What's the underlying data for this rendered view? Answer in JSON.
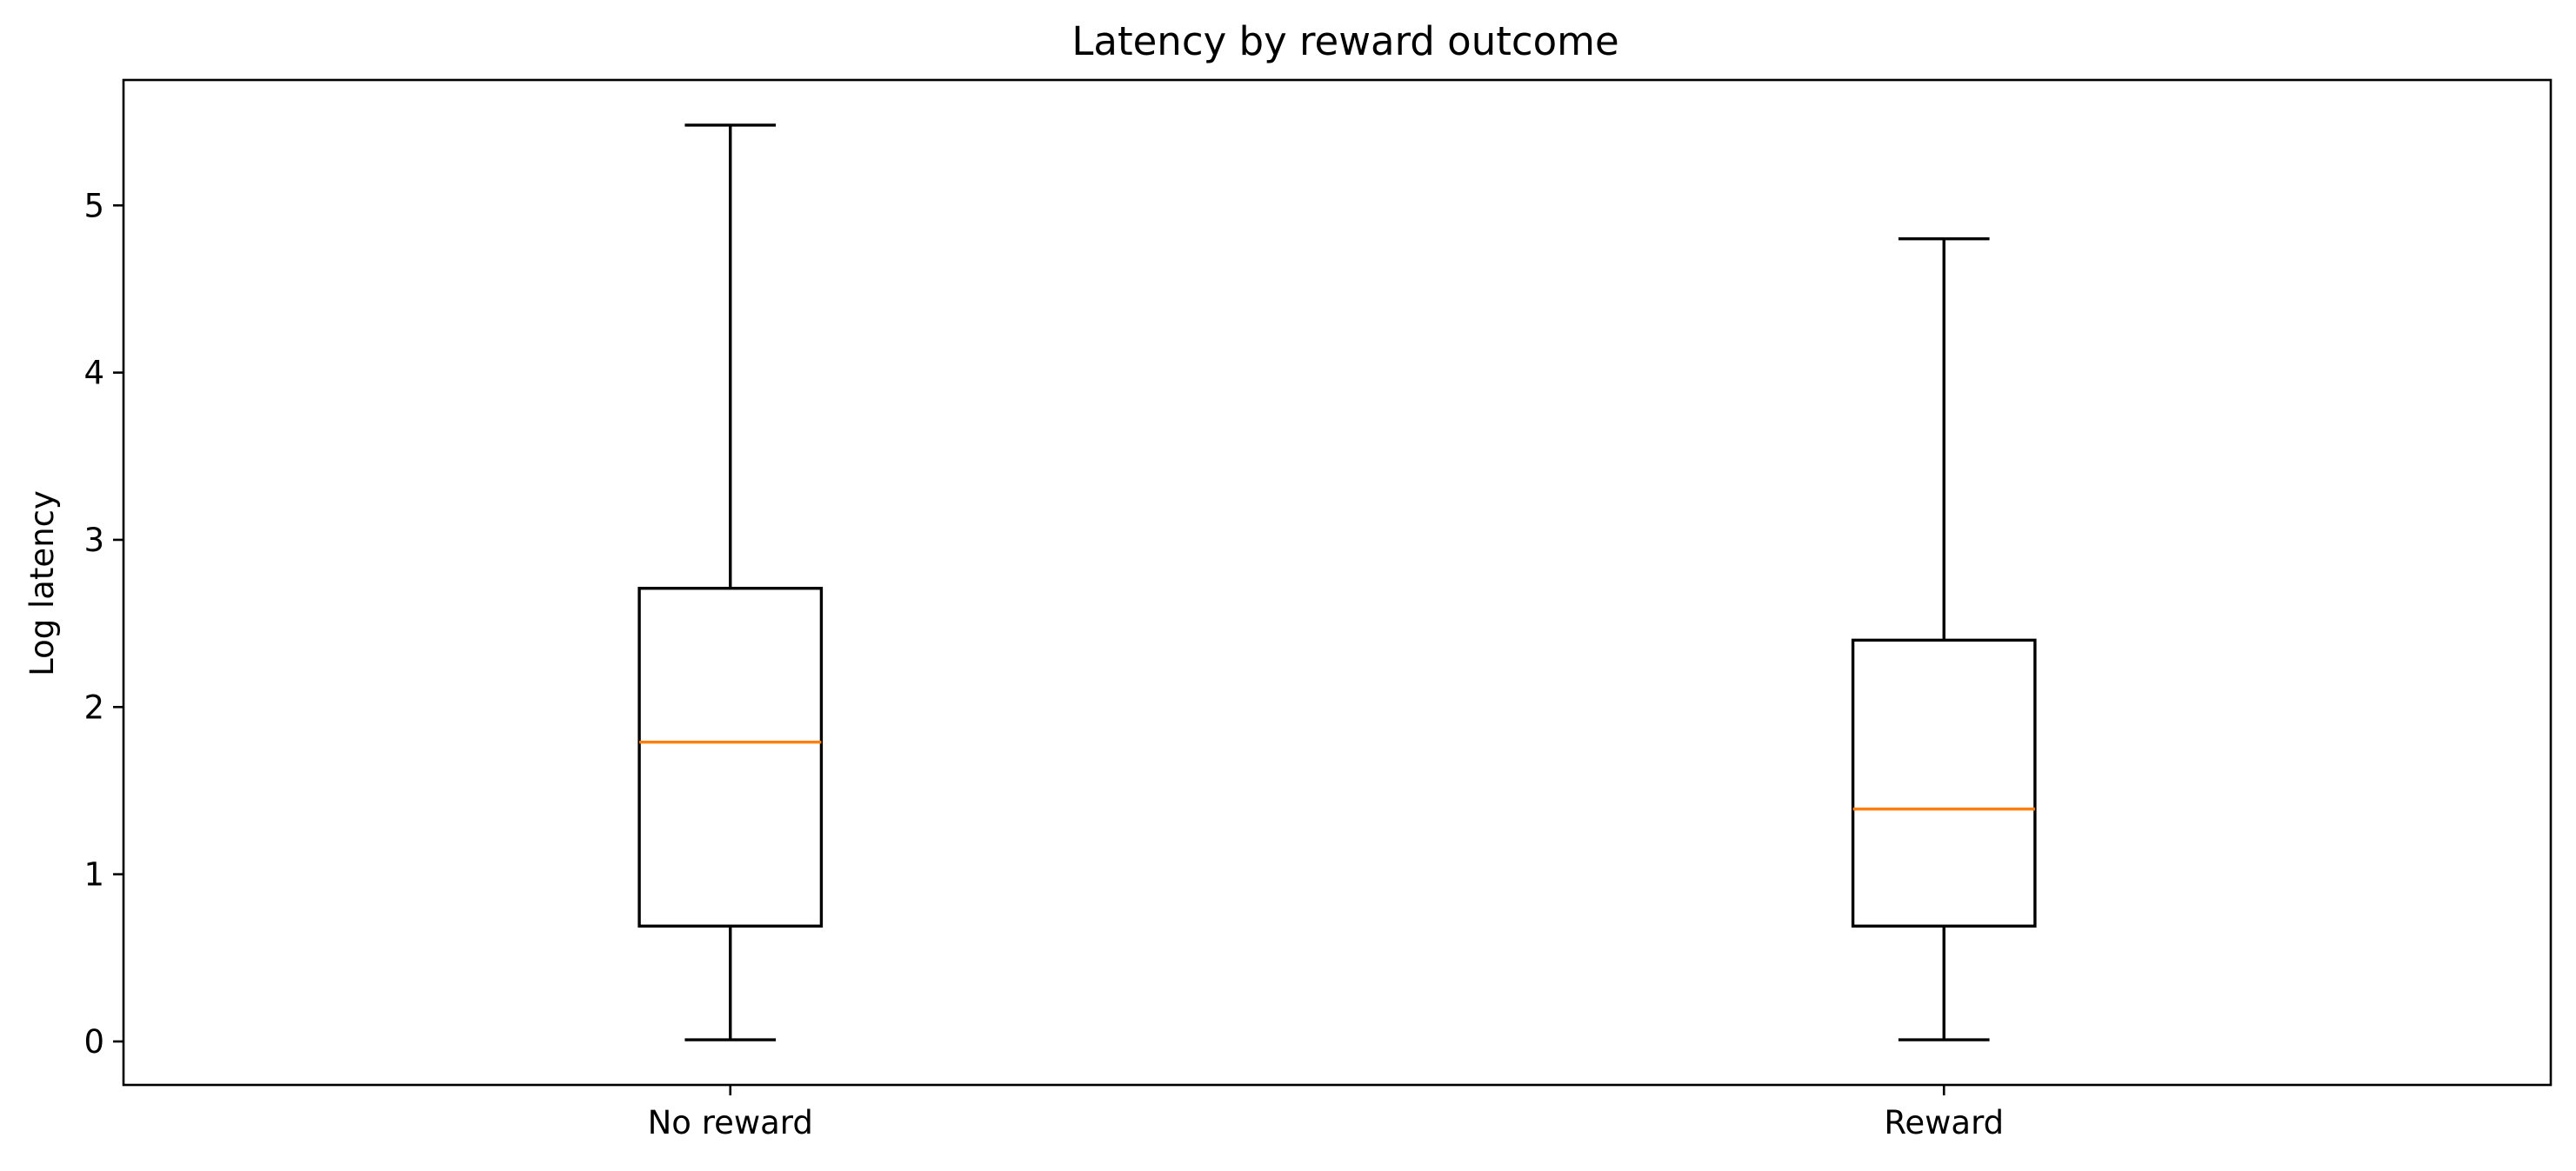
{
  "chart_data": {
    "type": "box",
    "title": "Latency by reward outcome",
    "xlabel": "",
    "ylabel": "Log latency",
    "categories": [
      "No reward",
      "Reward"
    ],
    "boxes": [
      {
        "name": "No reward",
        "whisker_low": 0.01,
        "q1": 0.69,
        "median": 1.79,
        "q3": 2.71,
        "whisker_high": 5.48
      },
      {
        "name": "Reward",
        "whisker_low": 0.01,
        "q1": 0.69,
        "median": 1.39,
        "q3": 2.4,
        "whisker_high": 4.8
      }
    ],
    "yticks": [
      0,
      1,
      2,
      3,
      4,
      5
    ],
    "ylim": [
      -0.26,
      5.75
    ],
    "grid": false,
    "median_color": "#ff7f0e"
  }
}
